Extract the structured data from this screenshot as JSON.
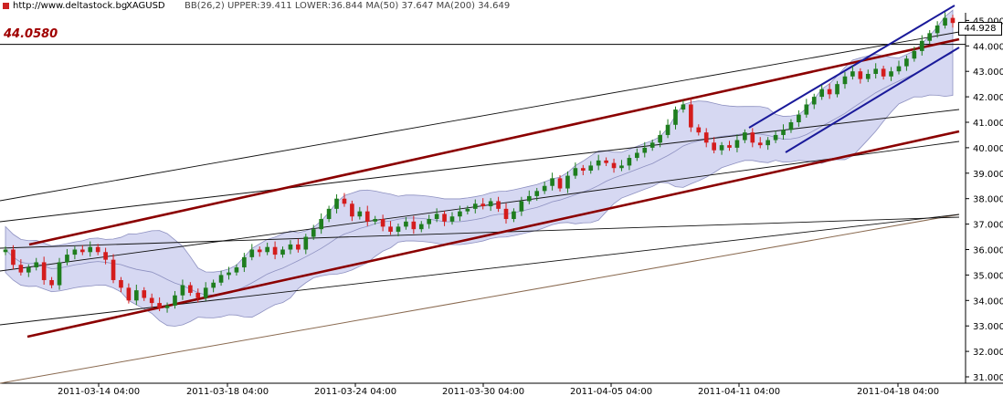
{
  "header": {
    "url": "http://www.deltastock.bg",
    "symbol": "XAGUSD",
    "indicators": "BB(26,2) UPPER:39.411 LOWER:36.844 MA(50) 37.647 MA(200) 34.649"
  },
  "labels": {
    "hline_value": "44.0580",
    "last_price": "44.928"
  },
  "chart_data": {
    "type": "candlestick",
    "xlabel": "",
    "ylabel": "",
    "ylim": [
      30.5,
      45.5
    ],
    "yticks": [
      "31.000",
      "32.000",
      "33.000",
      "34.000",
      "35.000",
      "36.000",
      "37.000",
      "38.000",
      "39.000",
      "40.000",
      "41.000",
      "42.000",
      "43.000",
      "44.000",
      "45.000"
    ],
    "xticks": [
      "2011-03-14 04:00",
      "2011-03-18 04:00",
      "2011-03-24 04:00",
      "2011-03-30 04:00",
      "2011-04-05 04:00",
      "2011-04-11 04:00",
      "2011-04-18 04:00"
    ],
    "horizontal_line": 44.058,
    "last_price": 44.928,
    "grid": true,
    "closes": [
      36.0,
      35.4,
      35.1,
      35.3,
      35.5,
      34.8,
      34.6,
      35.5,
      35.8,
      36.0,
      35.9,
      36.1,
      35.9,
      35.6,
      34.8,
      34.5,
      34.0,
      34.4,
      34.1,
      33.9,
      33.7,
      33.8,
      34.2,
      34.6,
      34.3,
      34.1,
      34.5,
      34.7,
      35.0,
      35.1,
      35.3,
      35.7,
      36.0,
      35.9,
      36.1,
      35.8,
      36.0,
      36.2,
      36.0,
      36.5,
      36.8,
      37.2,
      37.6,
      38.0,
      37.8,
      37.3,
      37.5,
      37.1,
      37.2,
      36.9,
      36.7,
      36.9,
      37.1,
      36.8,
      37.0,
      37.2,
      37.4,
      37.1,
      37.3,
      37.5,
      37.6,
      37.8,
      37.7,
      37.9,
      37.6,
      37.2,
      37.5,
      37.9,
      38.1,
      38.3,
      38.5,
      38.8,
      38.4,
      38.9,
      39.2,
      39.1,
      39.3,
      39.5,
      39.4,
      39.2,
      39.3,
      39.6,
      39.8,
      40.0,
      40.2,
      40.5,
      40.9,
      41.5,
      41.7,
      40.8,
      40.6,
      40.2,
      39.9,
      40.1,
      40.0,
      40.3,
      40.6,
      40.2,
      40.1,
      40.3,
      40.5,
      40.7,
      41.0,
      41.3,
      41.7,
      42.0,
      42.3,
      42.1,
      42.5,
      42.8,
      43.0,
      42.7,
      42.9,
      43.1,
      42.8,
      43.0,
      43.2,
      43.5,
      43.8,
      44.2,
      44.5,
      44.8,
      45.1,
      44.9
    ],
    "series": [
      {
        "name": "MA(50)",
        "value": 37.647
      },
      {
        "name": "MA(200)",
        "value": 34.649
      },
      {
        "name": "BB UPPER",
        "value": 39.411
      },
      {
        "name": "BB LOWER",
        "value": 36.844
      }
    ]
  },
  "colors": {
    "up": "#1e7d1e",
    "down": "#d41c1c",
    "band_fill": "#d6d8f2",
    "band_line": "#8d90c0",
    "trend_red": "#8b0000",
    "trend_blue": "#1a1a9a",
    "ma200": "#8a6a50"
  }
}
